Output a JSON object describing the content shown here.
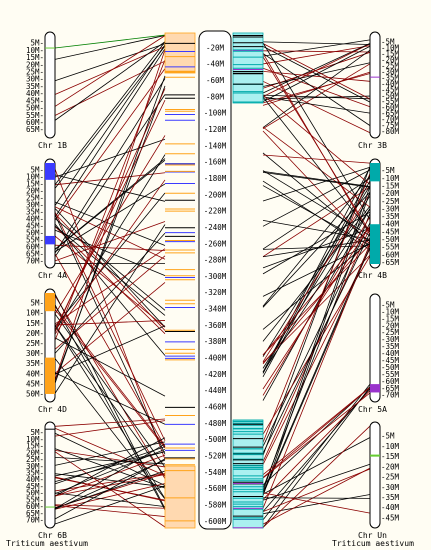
{
  "species": {
    "left": "Triticum aestivum",
    "right": "Triticum aestivum"
  },
  "central_axis": {
    "tick_labels": [
      "20M",
      "40M",
      "60M",
      "80M",
      "100M",
      "120M",
      "140M",
      "160M",
      "180M",
      "200M",
      "220M",
      "240M",
      "260M",
      "280M",
      "300M",
      "320M",
      "340M",
      "360M",
      "380M",
      "400M",
      "420M",
      "440M",
      "460M",
      "480M",
      "500M",
      "520M",
      "540M",
      "560M",
      "580M",
      "600M"
    ],
    "max_mb": 610
  },
  "left_chromosomes": [
    {
      "name": "Chr 1B",
      "length_mb": 68,
      "ticks": [
        "5M",
        "10M",
        "15M",
        "20M",
        "25M",
        "30M",
        "35M",
        "40M",
        "45M",
        "50M",
        "55M",
        "60M",
        "65M"
      ]
    },
    {
      "name": "Chr 4A",
      "length_mb": 72,
      "ticks": [
        "5M",
        "10M",
        "15M",
        "20M",
        "25M",
        "30M",
        "35M",
        "40M",
        "45M",
        "50M",
        "55M",
        "60M",
        "65M",
        "70M"
      ]
    },
    {
      "name": "Chr 4D",
      "length_mb": 52,
      "ticks": [
        "5M",
        "10M",
        "15M",
        "20M",
        "25M",
        "30M",
        "35M",
        "40M",
        "45M",
        "50M"
      ]
    },
    {
      "name": "Chr 6B",
      "length_mb": 73,
      "ticks": [
        "5M",
        "10M",
        "15M",
        "20M",
        "25M",
        "30M",
        "35M",
        "40M",
        "45M",
        "50M",
        "55M",
        "60M",
        "65M",
        "70M"
      ]
    }
  ],
  "right_chromosomes": [
    {
      "name": "Chr 3B",
      "length_mb": 82,
      "ticks": [
        "5M",
        "10M",
        "15M",
        "20M",
        "25M",
        "30M",
        "35M",
        "40M",
        "45M",
        "50M",
        "55M",
        "60M",
        "65M",
        "70M",
        "75M",
        "80M"
      ]
    },
    {
      "name": "Chr 4B",
      "length_mb": 66,
      "ticks": [
        "5M",
        "10M",
        "15M",
        "20M",
        "25M",
        "30M",
        "35M",
        "40M",
        "45M",
        "50M",
        "55M",
        "60M",
        "65M"
      ]
    },
    {
      "name": "Chr 5A",
      "length_mb": 72,
      "ticks": [
        "5M",
        "10M",
        "15M",
        "20M",
        "25M",
        "30M",
        "35M",
        "40M",
        "45M",
        "50M",
        "55M",
        "60M",
        "65M",
        "70M"
      ]
    },
    {
      "name": "Chr Un",
      "length_mb": 48,
      "ticks": [
        "5M",
        "10M",
        "15M",
        "20M",
        "25M",
        "30M",
        "35M",
        "40M",
        "45M"
      ]
    }
  ],
  "colors": {
    "background": "#fffdf3",
    "outline": "#000000",
    "link_dark": "#000000",
    "link_red": "#8b0000",
    "link_green": "#008000",
    "chr4A_block": "#3b3bff",
    "chr4D_block": "#ffa31a",
    "chr6B_mark": "#66cc33",
    "chr5A_mark": "#9933cc",
    "chr3B_block": "#00aaaa",
    "chr4B_block": "#00aaaa",
    "central_left_block": "#ffa31a",
    "central_right_block": "#00aaaa",
    "central_right_fill": "#aaf0f0",
    "central_left_fill": "#ffd9b0"
  }
}
